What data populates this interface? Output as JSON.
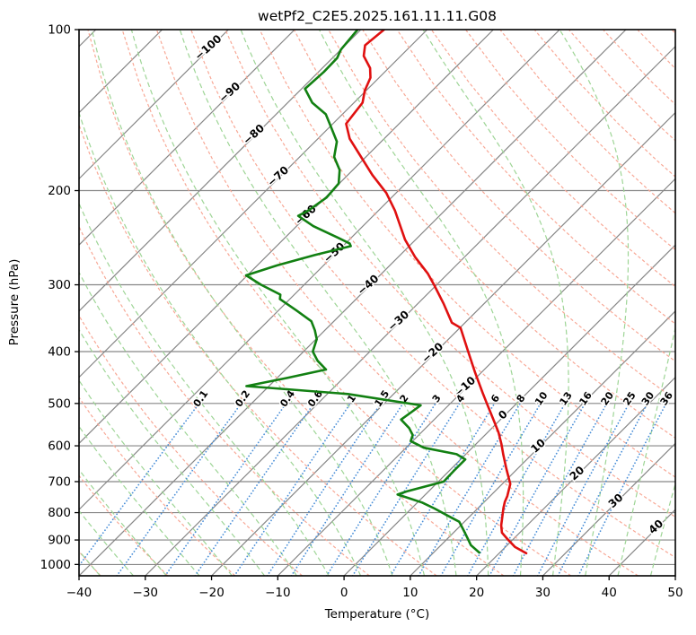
{
  "chart_data": {
    "type": "line",
    "subtype": "skewt-log-p",
    "title": "wetPf2_C2E5.2025.161.11.11.G08",
    "xlabel": "Temperature (°C)",
    "ylabel": "Pressure (hPa)",
    "x_range": [
      -40,
      50
    ],
    "p_range": [
      100,
      1050
    ],
    "p_ticks": [
      100,
      200,
      300,
      400,
      500,
      600,
      700,
      800,
      900,
      1000
    ],
    "t_ticks": [
      -40,
      -30,
      -20,
      -10,
      0,
      10,
      20,
      30,
      40,
      50
    ],
    "skew_deg": 45,
    "grid": true,
    "legend": "none",
    "colors": {
      "frame": "#000000",
      "grid": "#868686",
      "isotherm": "#868686",
      "dry_adiabat": "#f8a896",
      "moist_adiabat": "#9ed596",
      "mixing_line": "#4a8fd8",
      "mixing_label": "#2470b8",
      "temperature": "#e01010",
      "dewpoint": "#128012"
    },
    "isotherms": {
      "start": -120,
      "end": 50,
      "step": 10
    },
    "isotherm_labels": [
      {
        "value": -100,
        "p": 108,
        "color": "#2470b8"
      },
      {
        "value": -90,
        "p": 131,
        "color": "#2470b8"
      },
      {
        "value": -80,
        "p": 157,
        "color": "#2470b8"
      },
      {
        "value": -70,
        "p": 188,
        "color": "#2470b8"
      },
      {
        "value": -60,
        "p": 222,
        "color": "#2470b8"
      },
      {
        "value": -50,
        "p": 261,
        "color": "#2470b8"
      },
      {
        "value": -40,
        "p": 300,
        "color": "#2470b8"
      },
      {
        "value": -30,
        "p": 350,
        "color": "#2470b8"
      },
      {
        "value": -20,
        "p": 402,
        "color": "#2470b8"
      },
      {
        "value": -10,
        "p": 465,
        "color": "#2470b8"
      },
      {
        "value": 0,
        "p": 525,
        "color": "#7f7f7f"
      },
      {
        "value": 10,
        "p": 600,
        "color": "#cd2328"
      },
      {
        "value": 20,
        "p": 675,
        "color": "#cd2328"
      },
      {
        "value": 30,
        "p": 760,
        "color": "#cd2328"
      },
      {
        "value": 40,
        "p": 850,
        "color": "#cd2328"
      }
    ],
    "dry_adiabats": {
      "theta_start": -40,
      "theta_end": 260,
      "step": 10
    },
    "moist_adiabats": {
      "t0_start": -40,
      "t0_end": 45,
      "step": 5
    },
    "mixing_ratio": {
      "values": [
        0.1,
        0.2,
        0.4,
        0.6,
        1,
        1.5,
        2,
        3,
        4,
        6,
        8,
        10,
        13,
        16,
        20,
        25,
        30,
        36
      ],
      "label_pressure": 488,
      "top_pressure": 500,
      "bottom_pressure": 1050
    },
    "series": [
      {
        "name": "temperature",
        "points_p_T": [
          [
            100,
            -76.5
          ],
          [
            107,
            -77.0
          ],
          [
            112,
            -75.6
          ],
          [
            118,
            -72.8
          ],
          [
            123,
            -71.3
          ],
          [
            130,
            -70.2
          ],
          [
            137,
            -68.7
          ],
          [
            150,
            -68.0
          ],
          [
            160,
            -65.2
          ],
          [
            171,
            -61.4
          ],
          [
            187,
            -56.3
          ],
          [
            202,
            -51.5
          ],
          [
            218,
            -47.5
          ],
          [
            247,
            -41.6
          ],
          [
            266,
            -37.5
          ],
          [
            286,
            -33.0
          ],
          [
            300,
            -30.4
          ],
          [
            326,
            -26.0
          ],
          [
            353,
            -22.0
          ],
          [
            361,
            -19.9
          ],
          [
            397,
            -15.5
          ],
          [
            438,
            -10.9
          ],
          [
            478,
            -6.7
          ],
          [
            500,
            -4.5
          ],
          [
            540,
            -0.7
          ],
          [
            567,
            1.7
          ],
          [
            595,
            3.8
          ],
          [
            623,
            5.7
          ],
          [
            662,
            8.3
          ],
          [
            707,
            11.2
          ],
          [
            745,
            12.6
          ],
          [
            764,
            13.1
          ],
          [
            784,
            13.8
          ],
          [
            845,
            16.1
          ],
          [
            872,
            17.3
          ],
          [
            895,
            19.0
          ],
          [
            927,
            21.4
          ],
          [
            953,
            24.1
          ]
        ]
      },
      {
        "name": "dewpoint",
        "points_p_T": [
          [
            100,
            -80.5
          ],
          [
            109,
            -80.0
          ],
          [
            113,
            -79.3
          ],
          [
            120,
            -79.2
          ],
          [
            129,
            -79.5
          ],
          [
            137,
            -76.3
          ],
          [
            144,
            -72.5
          ],
          [
            153,
            -69.5
          ],
          [
            162,
            -66.7
          ],
          [
            173,
            -64.8
          ],
          [
            183,
            -62.0
          ],
          [
            194,
            -60.1
          ],
          [
            206,
            -59.8
          ],
          [
            218,
            -60.6
          ],
          [
            223,
            -61.3
          ],
          [
            233,
            -57.5
          ],
          [
            245,
            -52.0
          ],
          [
            251,
            -49.4
          ],
          [
            254,
            -48.8
          ],
          [
            264,
            -52.9
          ],
          [
            276,
            -57.0
          ],
          [
            288,
            -60.2
          ],
          [
            300,
            -56.5
          ],
          [
            313,
            -52.1
          ],
          [
            319,
            -51.5
          ],
          [
            335,
            -47.3
          ],
          [
            351,
            -43.4
          ],
          [
            365,
            -41.5
          ],
          [
            379,
            -39.9
          ],
          [
            400,
            -38.6
          ],
          [
            416,
            -36.5
          ],
          [
            432,
            -33.9
          ],
          [
            448,
            -38.5
          ],
          [
            464,
            -43.4
          ],
          [
            480,
            -26.9
          ],
          [
            504,
            -14.2
          ],
          [
            520,
            -14.6
          ],
          [
            536,
            -15.0
          ],
          [
            556,
            -12.5
          ],
          [
            573,
            -10.9
          ],
          [
            588,
            -10.3
          ],
          [
            605,
            -7.3
          ],
          [
            622,
            -1.4
          ],
          [
            636,
            0.7
          ],
          [
            667,
            0.7
          ],
          [
            700,
            0.8
          ],
          [
            730,
            -3.3
          ],
          [
            740,
            -4.2
          ],
          [
            752,
            -1.9
          ],
          [
            766,
            0.7
          ],
          [
            786,
            3.5
          ],
          [
            810,
            6.5
          ],
          [
            832,
            9.2
          ],
          [
            862,
            11.1
          ],
          [
            892,
            12.9
          ],
          [
            920,
            14.5
          ],
          [
            950,
            16.9
          ]
        ]
      }
    ]
  }
}
